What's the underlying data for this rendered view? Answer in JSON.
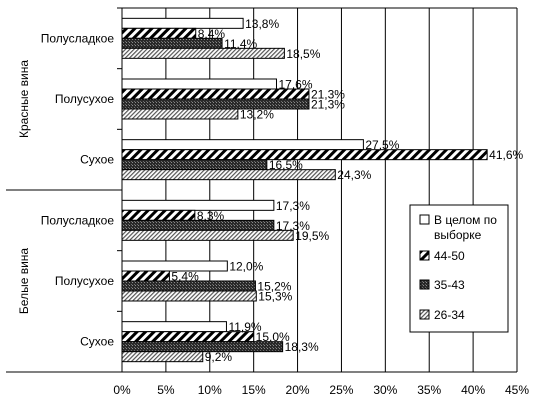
{
  "chart_data": {
    "type": "bar",
    "orientation": "horizontal",
    "xlim": [
      0,
      45
    ],
    "x_ticks": [
      "0%",
      "5%",
      "10%",
      "15%",
      "20%",
      "25%",
      "30%",
      "35%",
      "40%",
      "45%"
    ],
    "grid": true,
    "legend_position": "right",
    "groups": [
      {
        "label": "Красные вина",
        "categories": [
          {
            "label": "Полусладкое",
            "values": [
              13.8,
              8.4,
              11.4,
              18.5
            ],
            "labels": [
              "13,8%",
              "8,4%",
              "11,4%",
              "18,5%"
            ]
          },
          {
            "label": "Полусухое",
            "values": [
              17.6,
              21.3,
              21.3,
              13.2
            ],
            "labels": [
              "17,6%",
              "21,3%",
              "21,3%",
              "13,2%"
            ]
          },
          {
            "label": "Сухое",
            "values": [
              27.5,
              41.6,
              16.5,
              24.3
            ],
            "labels": [
              "27,5%",
              "41,6%",
              "16,5%",
              "24,3%"
            ]
          }
        ]
      },
      {
        "label": "Белые вина",
        "categories": [
          {
            "label": "Полусладкое",
            "values": [
              17.3,
              8.3,
              17.3,
              19.5
            ],
            "labels": [
              "17,3%",
              "8,3%",
              "17,3%",
              "19,5%"
            ]
          },
          {
            "label": "Полусухое",
            "values": [
              12.0,
              5.4,
              15.2,
              15.3
            ],
            "labels": [
              "12,0%",
              "5,4%",
              "15,2%",
              "15,3%"
            ]
          },
          {
            "label": "Сухое",
            "values": [
              11.9,
              15.0,
              18.3,
              9.2
            ],
            "labels": [
              "11,9%",
              "15,0%",
              "18,3%",
              "9,2%"
            ]
          }
        ]
      }
    ],
    "series": [
      {
        "name": "В целом по выборке",
        "pattern": "white"
      },
      {
        "name": "44-50",
        "pattern": "diagonal-bold"
      },
      {
        "name": "35-43",
        "pattern": "checker-dark"
      },
      {
        "name": "26-34",
        "pattern": "diagonal-fine"
      }
    ],
    "legend_items": [
      {
        "pattern": "white",
        "lines": [
          "В целом по",
          "выборке"
        ]
      },
      {
        "pattern": "diagonal-bold",
        "lines": [
          "44-50"
        ]
      },
      {
        "pattern": "checker-dark",
        "lines": [
          "35-43"
        ]
      },
      {
        "pattern": "diagonal-fine",
        "lines": [
          "26-34"
        ]
      }
    ]
  }
}
